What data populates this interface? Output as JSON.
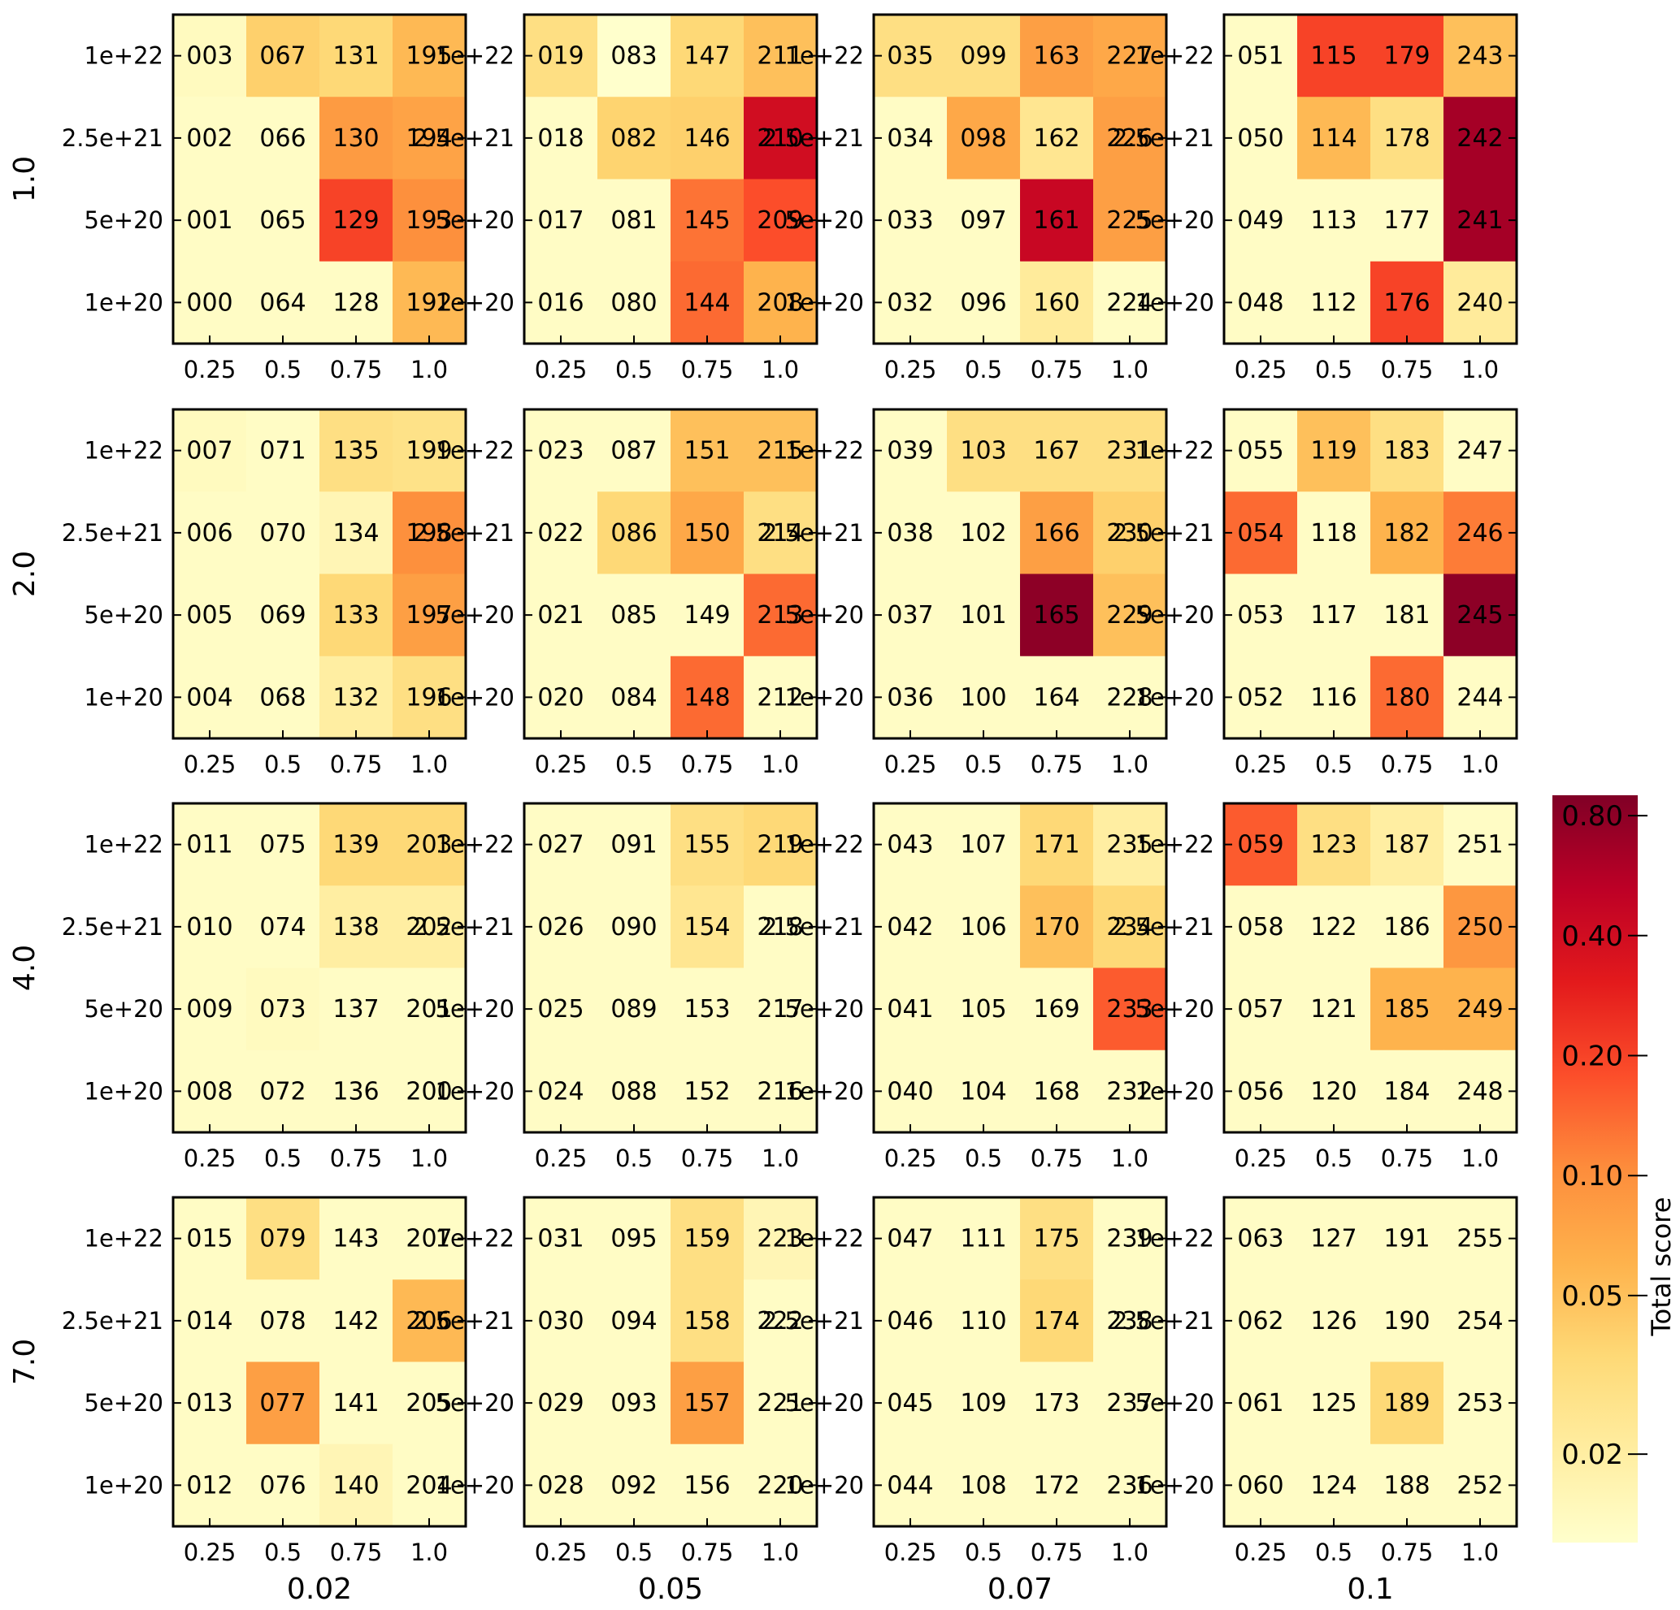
{
  "chart_data": {
    "type": "heatmap",
    "row_facet_labels": [
      "1.0",
      "2.0",
      "4.0",
      "7.0"
    ],
    "col_facet_labels": [
      "0.02",
      "0.05",
      "0.07",
      "0.1"
    ],
    "x_tick_labels": [
      "0.25",
      "0.5",
      "0.75",
      "1.0"
    ],
    "y_tick_labels": [
      "1e+22",
      "2.5e+21",
      "5e+20",
      "1e+20"
    ],
    "colorbar": {
      "label": "Total score",
      "scale": "log",
      "range": [
        0.012,
        0.9
      ],
      "tick_values": [
        0.02,
        0.05,
        0.1,
        0.2,
        0.4,
        0.8
      ],
      "tick_labels": [
        "0.02",
        "0.05",
        "0.10",
        "0.20",
        "0.40",
        "0.80"
      ],
      "colormap": [
        "#ffffcc",
        "#ffeda0",
        "#fed976",
        "#feb24c",
        "#fd8d3c",
        "#fc4e2a",
        "#e31a1c",
        "#bd0026",
        "#800026"
      ]
    },
    "panels": [
      {
        "row": "1.0",
        "col": "0.02",
        "labels": [
          [
            "003",
            "067",
            "131",
            "195"
          ],
          [
            "002",
            "066",
            "130",
            "194"
          ],
          [
            "001",
            "065",
            "129",
            "193"
          ],
          [
            "000",
            "064",
            "128",
            "192"
          ]
        ],
        "values": [
          [
            0.014,
            0.04,
            0.035,
            0.055
          ],
          [
            0.013,
            0.013,
            0.085,
            0.075
          ],
          [
            0.013,
            0.013,
            0.2,
            0.1
          ],
          [
            0.013,
            0.013,
            0.013,
            0.055
          ]
        ]
      },
      {
        "row": "1.0",
        "col": "0.05",
        "labels": [
          [
            "019",
            "083",
            "147",
            "211"
          ],
          [
            "018",
            "082",
            "146",
            "210"
          ],
          [
            "017",
            "081",
            "145",
            "209"
          ],
          [
            "016",
            "080",
            "144",
            "208"
          ]
        ],
        "values": [
          [
            0.03,
            0.012,
            0.035,
            0.05
          ],
          [
            0.013,
            0.038,
            0.04,
            0.4
          ],
          [
            0.013,
            0.013,
            0.13,
            0.18
          ],
          [
            0.013,
            0.013,
            0.14,
            0.06
          ]
        ]
      },
      {
        "row": "1.0",
        "col": "0.07",
        "labels": [
          [
            "035",
            "099",
            "163",
            "227"
          ],
          [
            "034",
            "098",
            "162",
            "226"
          ],
          [
            "033",
            "097",
            "161",
            "225"
          ],
          [
            "032",
            "096",
            "160",
            "224"
          ]
        ],
        "values": [
          [
            0.03,
            0.03,
            0.08,
            0.07
          ],
          [
            0.013,
            0.07,
            0.025,
            0.08
          ],
          [
            0.013,
            0.013,
            0.45,
            0.08
          ],
          [
            0.013,
            0.013,
            0.022,
            0.013
          ]
        ]
      },
      {
        "row": "1.0",
        "col": "0.1",
        "labels": [
          [
            "051",
            "115",
            "179",
            "243"
          ],
          [
            "050",
            "114",
            "178",
            "242"
          ],
          [
            "049",
            "113",
            "177",
            "241"
          ],
          [
            "048",
            "112",
            "176",
            "240"
          ]
        ],
        "values": [
          [
            0.013,
            0.2,
            0.2,
            0.05
          ],
          [
            0.013,
            0.055,
            0.03,
            0.65
          ],
          [
            0.013,
            0.013,
            0.013,
            0.65
          ],
          [
            0.013,
            0.013,
            0.2,
            0.022
          ]
        ]
      },
      {
        "row": "2.0",
        "col": "0.02",
        "labels": [
          [
            "007",
            "071",
            "135",
            "199"
          ],
          [
            "006",
            "070",
            "134",
            "198"
          ],
          [
            "005",
            "069",
            "133",
            "197"
          ],
          [
            "004",
            "068",
            "132",
            "196"
          ]
        ],
        "values": [
          [
            0.014,
            0.013,
            0.03,
            0.028
          ],
          [
            0.013,
            0.013,
            0.016,
            0.1
          ],
          [
            0.013,
            0.013,
            0.035,
            0.08
          ],
          [
            0.013,
            0.013,
            0.02,
            0.03
          ]
        ]
      },
      {
        "row": "2.0",
        "col": "0.05",
        "labels": [
          [
            "023",
            "087",
            "151",
            "215"
          ],
          [
            "022",
            "086",
            "150",
            "214"
          ],
          [
            "021",
            "085",
            "149",
            "213"
          ],
          [
            "020",
            "084",
            "148",
            "212"
          ]
        ],
        "values": [
          [
            0.013,
            0.013,
            0.05,
            0.05
          ],
          [
            0.013,
            0.035,
            0.07,
            0.03
          ],
          [
            0.013,
            0.013,
            0.013,
            0.14
          ],
          [
            0.013,
            0.013,
            0.14,
            0.013
          ]
        ]
      },
      {
        "row": "2.0",
        "col": "0.07",
        "labels": [
          [
            "039",
            "103",
            "167",
            "231"
          ],
          [
            "038",
            "102",
            "166",
            "230"
          ],
          [
            "037",
            "101",
            "165",
            "229"
          ],
          [
            "036",
            "100",
            "164",
            "228"
          ]
        ],
        "values": [
          [
            0.013,
            0.03,
            0.03,
            0.03
          ],
          [
            0.013,
            0.013,
            0.08,
            0.04
          ],
          [
            0.013,
            0.013,
            0.8,
            0.05
          ],
          [
            0.013,
            0.013,
            0.013,
            0.013
          ]
        ]
      },
      {
        "row": "2.0",
        "col": "0.1",
        "labels": [
          [
            "055",
            "119",
            "183",
            "247"
          ],
          [
            "054",
            "118",
            "182",
            "246"
          ],
          [
            "053",
            "117",
            "181",
            "245"
          ],
          [
            "052",
            "116",
            "180",
            "244"
          ]
        ],
        "values": [
          [
            0.013,
            0.05,
            0.03,
            0.013
          ],
          [
            0.14,
            0.013,
            0.06,
            0.12
          ],
          [
            0.013,
            0.013,
            0.013,
            0.8
          ],
          [
            0.013,
            0.013,
            0.14,
            0.013
          ]
        ]
      },
      {
        "row": "4.0",
        "col": "0.02",
        "labels": [
          [
            "011",
            "075",
            "139",
            "203"
          ],
          [
            "010",
            "074",
            "138",
            "202"
          ],
          [
            "009",
            "073",
            "137",
            "201"
          ],
          [
            "008",
            "072",
            "136",
            "200"
          ]
        ],
        "values": [
          [
            0.013,
            0.013,
            0.035,
            0.035
          ],
          [
            0.013,
            0.013,
            0.02,
            0.02
          ],
          [
            0.013,
            0.014,
            0.013,
            0.013
          ],
          [
            0.013,
            0.013,
            0.013,
            0.013
          ]
        ]
      },
      {
        "row": "4.0",
        "col": "0.05",
        "labels": [
          [
            "027",
            "091",
            "155",
            "219"
          ],
          [
            "026",
            "090",
            "154",
            "218"
          ],
          [
            "025",
            "089",
            "153",
            "217"
          ],
          [
            "024",
            "088",
            "152",
            "216"
          ]
        ],
        "values": [
          [
            0.013,
            0.013,
            0.03,
            0.035
          ],
          [
            0.013,
            0.013,
            0.025,
            0.013
          ],
          [
            0.013,
            0.013,
            0.013,
            0.013
          ],
          [
            0.013,
            0.013,
            0.013,
            0.013
          ]
        ]
      },
      {
        "row": "4.0",
        "col": "0.07",
        "labels": [
          [
            "043",
            "107",
            "171",
            "235"
          ],
          [
            "042",
            "106",
            "170",
            "234"
          ],
          [
            "041",
            "105",
            "169",
            "233"
          ],
          [
            "040",
            "104",
            "168",
            "232"
          ]
        ],
        "values": [
          [
            0.013,
            0.013,
            0.035,
            0.02
          ],
          [
            0.013,
            0.013,
            0.05,
            0.035
          ],
          [
            0.013,
            0.013,
            0.013,
            0.16
          ],
          [
            0.013,
            0.013,
            0.013,
            0.013
          ]
        ]
      },
      {
        "row": "4.0",
        "col": "0.1",
        "labels": [
          [
            "059",
            "123",
            "187",
            "251"
          ],
          [
            "058",
            "122",
            "186",
            "250"
          ],
          [
            "057",
            "121",
            "185",
            "249"
          ],
          [
            "056",
            "120",
            "184",
            "248"
          ]
        ],
        "values": [
          [
            0.16,
            0.03,
            0.02,
            0.013
          ],
          [
            0.013,
            0.013,
            0.013,
            0.09
          ],
          [
            0.013,
            0.013,
            0.06,
            0.06
          ],
          [
            0.013,
            0.013,
            0.013,
            0.013
          ]
        ]
      },
      {
        "row": "7.0",
        "col": "0.02",
        "labels": [
          [
            "015",
            "079",
            "143",
            "207"
          ],
          [
            "014",
            "078",
            "142",
            "206"
          ],
          [
            "013",
            "077",
            "141",
            "205"
          ],
          [
            "012",
            "076",
            "140",
            "204"
          ]
        ],
        "values": [
          [
            0.013,
            0.03,
            0.013,
            0.013
          ],
          [
            0.013,
            0.013,
            0.013,
            0.055
          ],
          [
            0.013,
            0.08,
            0.013,
            0.013
          ],
          [
            0.013,
            0.013,
            0.016,
            0.013
          ]
        ]
      },
      {
        "row": "7.0",
        "col": "0.05",
        "labels": [
          [
            "031",
            "095",
            "159",
            "223"
          ],
          [
            "030",
            "094",
            "158",
            "222"
          ],
          [
            "029",
            "093",
            "157",
            "221"
          ],
          [
            "028",
            "092",
            "156",
            "220"
          ]
        ],
        "values": [
          [
            0.013,
            0.013,
            0.03,
            0.016
          ],
          [
            0.013,
            0.013,
            0.03,
            0.013
          ],
          [
            0.013,
            0.013,
            0.08,
            0.013
          ],
          [
            0.013,
            0.013,
            0.013,
            0.013
          ]
        ]
      },
      {
        "row": "7.0",
        "col": "0.07",
        "labels": [
          [
            "047",
            "111",
            "175",
            "239"
          ],
          [
            "046",
            "110",
            "174",
            "238"
          ],
          [
            "045",
            "109",
            "173",
            "237"
          ],
          [
            "044",
            "108",
            "172",
            "236"
          ]
        ],
        "values": [
          [
            0.013,
            0.013,
            0.03,
            0.013
          ],
          [
            0.013,
            0.013,
            0.035,
            0.013
          ],
          [
            0.013,
            0.013,
            0.013,
            0.013
          ],
          [
            0.013,
            0.013,
            0.013,
            0.013
          ]
        ]
      },
      {
        "row": "7.0",
        "col": "0.1",
        "labels": [
          [
            "063",
            "127",
            "191",
            "255"
          ],
          [
            "062",
            "126",
            "190",
            "254"
          ],
          [
            "061",
            "125",
            "189",
            "253"
          ],
          [
            "060",
            "124",
            "188",
            "252"
          ]
        ],
        "values": [
          [
            0.013,
            0.013,
            0.013,
            0.013
          ],
          [
            0.013,
            0.013,
            0.013,
            0.013
          ],
          [
            0.013,
            0.013,
            0.035,
            0.013
          ],
          [
            0.013,
            0.013,
            0.013,
            0.013
          ]
        ]
      }
    ]
  }
}
